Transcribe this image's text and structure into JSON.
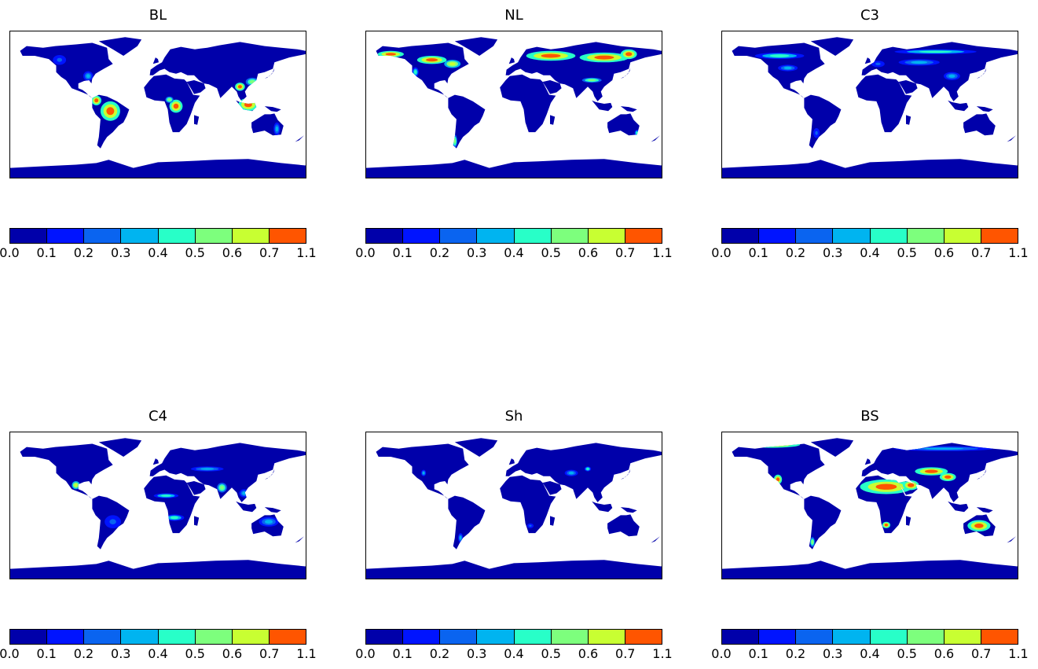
{
  "figure": {
    "panels": [
      {
        "id": "BL",
        "title": "BL",
        "hotspots": [
          {
            "lon": -58,
            "lat": -8,
            "rx": 12,
            "ry": 12,
            "level": 7
          },
          {
            "lon": -75,
            "lat": 5,
            "rx": 6,
            "ry": 6,
            "level": 7
          },
          {
            "lon": 22,
            "lat": -2,
            "rx": 8,
            "ry": 8,
            "level": 7
          },
          {
            "lon": 14,
            "lat": 6,
            "rx": 5,
            "ry": 4,
            "level": 5
          },
          {
            "lon": 110,
            "lat": 0,
            "rx": 12,
            "ry": 8,
            "level": 7
          },
          {
            "lon": 100,
            "lat": 22,
            "rx": 6,
            "ry": 5,
            "level": 7
          },
          {
            "lon": 115,
            "lat": 28,
            "rx": 8,
            "ry": 5,
            "level": 5
          },
          {
            "lon": 145,
            "lat": -30,
            "rx": 4,
            "ry": 8,
            "level": 3
          },
          {
            "lon": -85,
            "lat": 35,
            "rx": 6,
            "ry": 6,
            "level": 3
          },
          {
            "lon": -120,
            "lat": 55,
            "rx": 8,
            "ry": 6,
            "level": 2
          }
        ]
      },
      {
        "id": "NL",
        "title": "NL",
        "hotspots": [
          {
            "lon": -150,
            "lat": 62,
            "rx": 16,
            "ry": 4,
            "level": 7
          },
          {
            "lon": -100,
            "lat": 55,
            "rx": 18,
            "ry": 5,
            "level": 7
          },
          {
            "lon": -75,
            "lat": 50,
            "rx": 10,
            "ry": 5,
            "level": 6
          },
          {
            "lon": 45,
            "lat": 60,
            "rx": 30,
            "ry": 6,
            "level": 7
          },
          {
            "lon": 110,
            "lat": 58,
            "rx": 30,
            "ry": 6,
            "level": 7
          },
          {
            "lon": 140,
            "lat": 62,
            "rx": 10,
            "ry": 6,
            "level": 7
          },
          {
            "lon": 95,
            "lat": 30,
            "rx": 12,
            "ry": 3,
            "level": 5
          },
          {
            "lon": -72,
            "lat": -45,
            "rx": 3,
            "ry": 8,
            "level": 5
          },
          {
            "lon": -120,
            "lat": 40,
            "rx": 4,
            "ry": 6,
            "level": 4
          },
          {
            "lon": 150,
            "lat": -35,
            "rx": 3,
            "ry": 4,
            "level": 4
          }
        ]
      },
      {
        "id": "C3",
        "title": "C3",
        "hotspots": [
          {
            "lon": -110,
            "lat": 60,
            "rx": 30,
            "ry": 4,
            "level": 4
          },
          {
            "lon": 80,
            "lat": 65,
            "rx": 50,
            "ry": 3,
            "level": 4
          },
          {
            "lon": 60,
            "lat": 52,
            "rx": 25,
            "ry": 4,
            "level": 3
          },
          {
            "lon": 100,
            "lat": 35,
            "rx": 10,
            "ry": 5,
            "level": 3
          },
          {
            "lon": -100,
            "lat": 45,
            "rx": 12,
            "ry": 4,
            "level": 3
          },
          {
            "lon": 10,
            "lat": 50,
            "rx": 8,
            "ry": 4,
            "level": 2
          },
          {
            "lon": -65,
            "lat": -35,
            "rx": 4,
            "ry": 6,
            "level": 2
          }
        ]
      },
      {
        "id": "C4",
        "title": "C4",
        "hotspots": [
          {
            "lon": -100,
            "lat": 25,
            "rx": 5,
            "ry": 5,
            "level": 6
          },
          {
            "lon": 20,
            "lat": -15,
            "rx": 12,
            "ry": 4,
            "level": 4
          },
          {
            "lon": 10,
            "lat": 12,
            "rx": 15,
            "ry": 3,
            "level": 4
          },
          {
            "lon": 78,
            "lat": 22,
            "rx": 6,
            "ry": 6,
            "level": 5
          },
          {
            "lon": 60,
            "lat": 45,
            "rx": 20,
            "ry": 3,
            "level": 3
          },
          {
            "lon": 135,
            "lat": -20,
            "rx": 12,
            "ry": 6,
            "level": 3
          },
          {
            "lon": -55,
            "lat": -20,
            "rx": 10,
            "ry": 8,
            "level": 2
          },
          {
            "lon": 105,
            "lat": 15,
            "rx": 6,
            "ry": 5,
            "level": 3
          }
        ]
      },
      {
        "id": "Sh",
        "title": "Sh",
        "hotspots": [
          {
            "lon": -65,
            "lat": -40,
            "rx": 3,
            "ry": 6,
            "level": 3
          },
          {
            "lon": 70,
            "lat": 40,
            "rx": 8,
            "ry": 4,
            "level": 3
          },
          {
            "lon": 90,
            "lat": 45,
            "rx": 4,
            "ry": 3,
            "level": 4
          },
          {
            "lon": -110,
            "lat": 40,
            "rx": 3,
            "ry": 4,
            "level": 3
          },
          {
            "lon": 20,
            "lat": -25,
            "rx": 4,
            "ry": 3,
            "level": 2
          }
        ]
      },
      {
        "id": "BS",
        "title": "BS",
        "hotspots": [
          {
            "lon": -120,
            "lat": 75,
            "rx": 35,
            "ry": 4,
            "level": 7
          },
          {
            "lon": 20,
            "lat": 23,
            "rx": 32,
            "ry": 9,
            "level": 7
          },
          {
            "lon": 50,
            "lat": 25,
            "rx": 10,
            "ry": 6,
            "level": 7
          },
          {
            "lon": 75,
            "lat": 42,
            "rx": 20,
            "ry": 5,
            "level": 7
          },
          {
            "lon": 95,
            "lat": 35,
            "rx": 10,
            "ry": 5,
            "level": 7
          },
          {
            "lon": 133,
            "lat": -25,
            "rx": 14,
            "ry": 7,
            "level": 7
          },
          {
            "lon": 20,
            "lat": -24,
            "rx": 5,
            "ry": 4,
            "level": 7
          },
          {
            "lon": -112,
            "lat": 32,
            "rx": 5,
            "ry": 6,
            "level": 7
          },
          {
            "lon": 90,
            "lat": 70,
            "rx": 60,
            "ry": 3,
            "level": 3
          },
          {
            "lon": -70,
            "lat": -45,
            "rx": 3,
            "ry": 6,
            "level": 5
          }
        ]
      }
    ],
    "colorbar": {
      "ticks": [
        "0.0",
        "0.1",
        "0.2",
        "0.3",
        "0.4",
        "0.5",
        "0.6",
        "0.7",
        "1.1"
      ],
      "colors": [
        "#0000aa",
        "#0014ff",
        "#0a64f0",
        "#00b4f0",
        "#28ffc8",
        "#7dff7d",
        "#c8ff32",
        "#ff5500"
      ]
    },
    "map_colors": {
      "land_base": "#0000aa",
      "ocean": "#ffffff"
    }
  }
}
